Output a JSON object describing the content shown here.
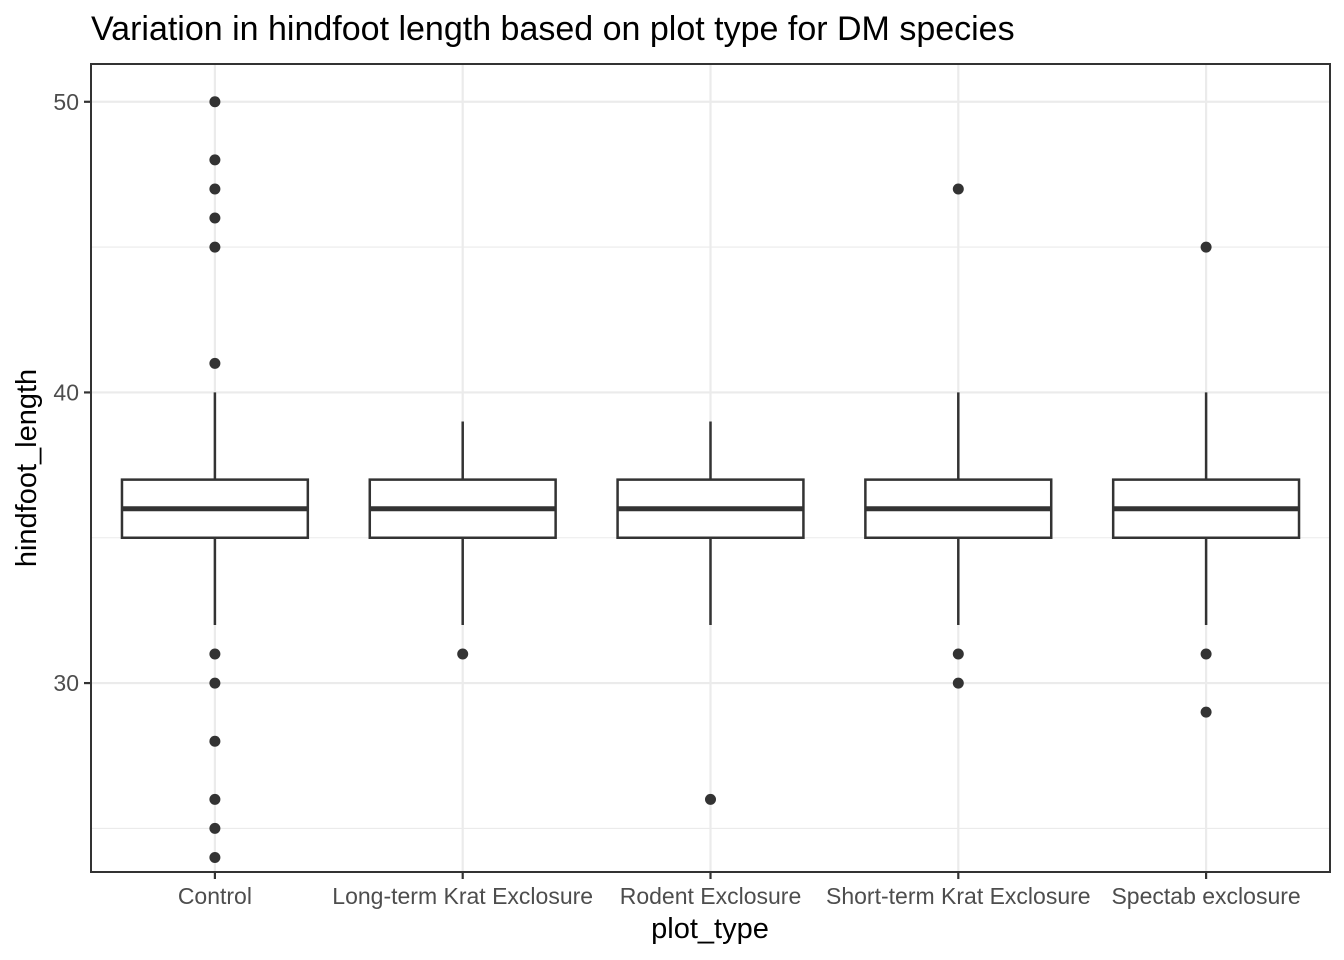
{
  "chart_data": {
    "type": "boxplot",
    "title": "Variation in hindfoot length based on plot type for DM species",
    "xlabel": "plot_type",
    "ylabel": "hindfoot_length",
    "ylim": [
      23.5,
      51.3
    ],
    "y_ticks": [
      30,
      40,
      50
    ],
    "y_tick_labels": [
      "30",
      "40",
      "50"
    ],
    "y_minor_ticks": [
      25,
      35,
      45
    ],
    "grid": true,
    "categories": [
      "Control",
      "Long-term Krat Exclosure",
      "Rodent Exclosure",
      "Short-term Krat Exclosure",
      "Spectab exclosure"
    ],
    "boxes": [
      {
        "category": "Control",
        "q1": 35,
        "median": 36,
        "q3": 37,
        "whisker_low": 32,
        "whisker_high": 40,
        "outliers": [
          50,
          48,
          47,
          46,
          45,
          41,
          31,
          30,
          28,
          26,
          25,
          24
        ]
      },
      {
        "category": "Long-term Krat Exclosure",
        "q1": 35,
        "median": 36,
        "q3": 37,
        "whisker_low": 32,
        "whisker_high": 39,
        "outliers": [
          31
        ]
      },
      {
        "category": "Rodent Exclosure",
        "q1": 35,
        "median": 36,
        "q3": 37,
        "whisker_low": 32,
        "whisker_high": 39,
        "outliers": [
          26
        ]
      },
      {
        "category": "Short-term Krat Exclosure",
        "q1": 35,
        "median": 36,
        "q3": 37,
        "whisker_low": 32,
        "whisker_high": 40,
        "outliers": [
          47,
          31,
          30
        ]
      },
      {
        "category": "Spectab exclosure",
        "q1": 35,
        "median": 36,
        "q3": 37,
        "whisker_low": 32,
        "whisker_high": 40,
        "outliers": [
          45,
          31,
          29
        ]
      }
    ],
    "colors": {
      "box_outline": "#333333",
      "box_fill": "#ffffff",
      "grid": "#ebebeb",
      "tick_text": "#4d4d4d"
    }
  }
}
